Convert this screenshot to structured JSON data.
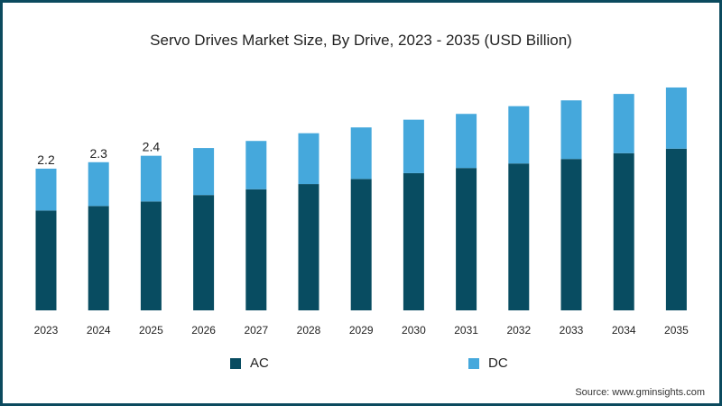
{
  "chart_data": {
    "type": "bar",
    "stacked": true,
    "title": "Servo Drives Market Size, By Drive, 2023 - 2035 (USD Billion)",
    "categories": [
      "2023",
      "2024",
      "2025",
      "2026",
      "2027",
      "2028",
      "2029",
      "2030",
      "2031",
      "2032",
      "2033",
      "2034",
      "2035"
    ],
    "series": [
      {
        "name": "AC",
        "color": "#084c61",
        "values": [
          1.55,
          1.62,
          1.69,
          1.79,
          1.88,
          1.96,
          2.04,
          2.13,
          2.21,
          2.28,
          2.35,
          2.44,
          2.51
        ]
      },
      {
        "name": "DC",
        "color": "#45a8dc",
        "values": [
          0.65,
          0.68,
          0.71,
          0.73,
          0.75,
          0.79,
          0.8,
          0.83,
          0.84,
          0.89,
          0.91,
          0.92,
          0.95
        ]
      }
    ],
    "data_labels": [
      "2.2",
      "2.3",
      "2.4"
    ],
    "xlabel": "",
    "ylabel": "",
    "ylim": [
      0,
      4
    ],
    "grid": false,
    "legend_position": "bottom"
  },
  "source": "Source: www.gminsights.com"
}
